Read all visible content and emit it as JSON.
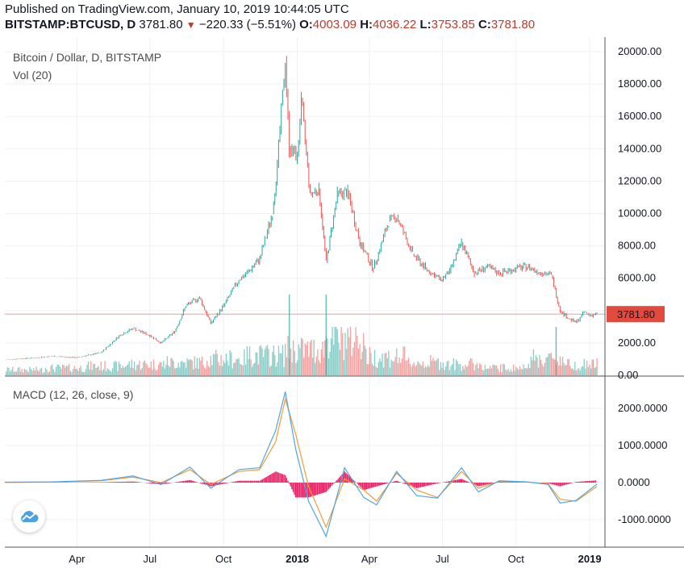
{
  "header": {
    "published": "Published on TradingView.com, January 10, 2019 10:44:05 UTC",
    "symbol": "BITSTAMP:BTCUSD, D",
    "last": "3781.80",
    "change_arrow": "▼",
    "change": "−220.33 (−5.51%)",
    "o_label": "O:",
    "o_value": "4003.09",
    "h_label": "H:",
    "h_value": "4036.22",
    "l_label": "L:",
    "l_value": "3753.85",
    "c_label": "C:",
    "c_value": "3781.80"
  },
  "price_pane": {
    "title": "Bitcoin / Dollar, D, BITSTAMP",
    "volume_label": "Vol (20)",
    "last_price_label": "3781.80",
    "y_ticks": [
      "20000.00",
      "18000.00",
      "16000.00",
      "14000.00",
      "12000.00",
      "10000.00",
      "8000.00",
      "6000.00",
      "4000.00",
      "2000.00",
      "0.00"
    ]
  },
  "macd_pane": {
    "title": "MACD (12, 26, close, 9)",
    "y_ticks": [
      "2000.0000",
      "1000.0000",
      "0.0000",
      "-1000.0000"
    ]
  },
  "x_axis": {
    "ticks": [
      "Apr",
      "Jul",
      "Oct",
      "2018",
      "Apr",
      "Jul",
      "Oct",
      "2019"
    ]
  },
  "colors": {
    "up": "#26a69a",
    "down": "#ef5350",
    "macd_line": "#4ea5e6",
    "signal_line": "#f39c38",
    "histogram": "#e91e63",
    "last_price_badge": "#e34a3e",
    "grid": "#eef0f3"
  },
  "logo": {
    "icon": "tradingview-cloud-icon"
  },
  "chart_data": [
    {
      "type": "line",
      "title": "Bitcoin / Dollar, D, BITSTAMP",
      "series": [
        {
          "name": "Bitcoin / Dollar, D, BITSTAMP",
          "x": [
            "2017-01-01",
            "2017-02-01",
            "2017-03-01",
            "2017-04-01",
            "2017-05-01",
            "2017-05-25",
            "2017-06-10",
            "2017-07-01",
            "2017-07-15",
            "2017-08-01",
            "2017-08-15",
            "2017-09-01",
            "2017-09-15",
            "2017-10-01",
            "2017-10-20",
            "2017-11-01",
            "2017-11-15",
            "2017-12-01",
            "2017-12-07",
            "2017-12-17",
            "2017-12-22",
            "2018-01-01",
            "2018-01-06",
            "2018-01-17",
            "2018-01-28",
            "2018-02-06",
            "2018-02-20",
            "2018-03-05",
            "2018-03-20",
            "2018-04-06",
            "2018-04-25",
            "2018-05-05",
            "2018-05-25",
            "2018-06-10",
            "2018-06-29",
            "2018-07-10",
            "2018-07-25",
            "2018-08-10",
            "2018-08-25",
            "2018-09-10",
            "2018-10-01",
            "2018-10-15",
            "2018-11-01",
            "2018-11-14",
            "2018-11-25",
            "2018-12-06",
            "2018-12-15",
            "2018-12-25",
            "2019-01-01",
            "2019-01-10"
          ],
          "values": [
            970,
            1050,
            1180,
            1090,
            1400,
            2500,
            2900,
            2450,
            2000,
            2700,
            4300,
            4800,
            3200,
            4300,
            5900,
            6400,
            7200,
            10000,
            13000,
            19400,
            14000,
            13500,
            17000,
            11200,
            11500,
            7000,
            11200,
            11300,
            8200,
            6600,
            9500,
            9800,
            7500,
            6600,
            5900,
            6400,
            8200,
            6300,
            6700,
            6300,
            6600,
            6700,
            6350,
            6200,
            4000,
            3500,
            3250,
            3900,
            3700,
            3780
          ],
          "units": "USD"
        },
        {
          "name": "Vol (20)",
          "type": "bar",
          "x": [
            "2017-01",
            "2017-03",
            "2017-05",
            "2017-07",
            "2017-09",
            "2017-11",
            "2017-12",
            "2018-01",
            "2018-02",
            "2018-03",
            "2018-05",
            "2018-07",
            "2018-09",
            "2018-11",
            "2019-01"
          ],
          "values": [
            0.15,
            0.2,
            0.25,
            0.3,
            0.35,
            0.45,
            0.55,
            0.7,
            1.0,
            0.5,
            0.35,
            0.3,
            0.2,
            0.45,
            0.3
          ]
        }
      ],
      "ylim": [
        0,
        20000
      ],
      "yticks": [
        0,
        2000,
        4000,
        6000,
        8000,
        10000,
        12000,
        14000,
        16000,
        18000,
        20000
      ],
      "last_price": 3781.8
    },
    {
      "type": "line",
      "title": "MACD (12, 26, close, 9)",
      "x": [
        "2017-01-01",
        "2017-03-01",
        "2017-05-01",
        "2017-06-10",
        "2017-07-15",
        "2017-08-20",
        "2017-09-15",
        "2017-10-20",
        "2017-11-15",
        "2017-12-05",
        "2017-12-17",
        "2017-12-30",
        "2018-01-15",
        "2018-02-06",
        "2018-03-01",
        "2018-03-25",
        "2018-04-10",
        "2018-05-05",
        "2018-05-30",
        "2018-06-25",
        "2018-07-25",
        "2018-08-15",
        "2018-09-10",
        "2018-10-15",
        "2018-11-10",
        "2018-11-25",
        "2018-12-15",
        "2019-01-10"
      ],
      "series": [
        {
          "name": "MACD",
          "values": [
            10,
            20,
            60,
            180,
            -50,
            420,
            -150,
            350,
            400,
            1400,
            2450,
            900,
            -500,
            -1450,
            400,
            -400,
            -600,
            300,
            -350,
            -420,
            400,
            -250,
            50,
            20,
            -50,
            -550,
            -480,
            -40
          ]
        },
        {
          "name": "Signal",
          "values": [
            5,
            15,
            50,
            150,
            0,
            350,
            -50,
            300,
            350,
            1100,
            2250,
            1300,
            -100,
            -1200,
            100,
            -200,
            -500,
            250,
            -200,
            -400,
            300,
            -150,
            30,
            15,
            -30,
            -450,
            -500,
            -100
          ]
        },
        {
          "name": "Histogram",
          "type": "bar",
          "values": [
            5,
            5,
            10,
            30,
            -50,
            70,
            -100,
            50,
            50,
            300,
            200,
            -400,
            -400,
            -250,
            300,
            -200,
            -100,
            50,
            -150,
            -20,
            100,
            -100,
            20,
            5,
            -20,
            -100,
            20,
            60
          ]
        }
      ],
      "ylim": [
        -1500,
        2500
      ],
      "yticks": [
        -1000,
        0,
        1000,
        2000
      ]
    }
  ]
}
